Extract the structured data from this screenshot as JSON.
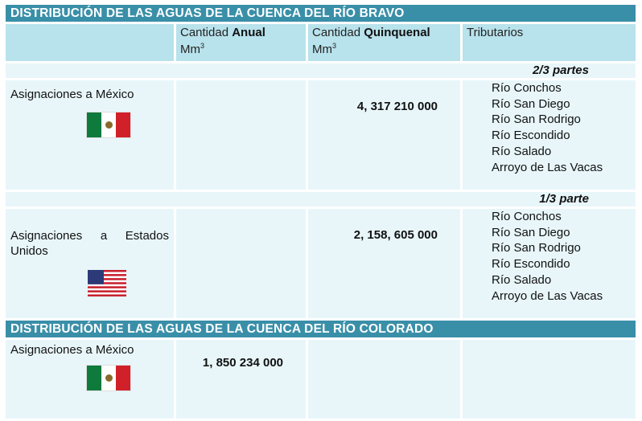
{
  "bravo": {
    "title": "DISTRIBUCIÓN DE LAS AGUAS DE LA CUENCA DEL RÍO BRAVO",
    "headers": {
      "anual_prefix": "Cantidad ",
      "anual_bold": "Anual",
      "quinquenal_prefix": "Cantidad ",
      "quinquenal_bold": "Quinquenal",
      "unit": "Mm",
      "unit_sup": "3",
      "tributarios": "Tributarios"
    },
    "mexico": {
      "share": "2/3 partes",
      "label": "Asignaciones a México",
      "flag": "mexico-flag",
      "quinquenal": "4, 317 210 000",
      "tributaries": [
        "Río Conchos",
        "Río San Diego",
        "Río San Rodrigo",
        "Río Escondido",
        "Río Salado",
        "Arroyo de Las Vacas"
      ]
    },
    "usa": {
      "share": "1/3 parte",
      "label_words": [
        "Asignaciones",
        "a",
        "Estados"
      ],
      "label_line2": "Unidos",
      "flag": "usa-flag",
      "quinquenal": "2, 158, 605 000",
      "tributaries": [
        "Río Conchos",
        "Río San Diego",
        "Río San Rodrigo",
        "Río Escondido",
        "Río Salado",
        "Arroyo de Las Vacas"
      ]
    }
  },
  "colorado": {
    "title": "DISTRIBUCIÓN DE LAS AGUAS DE LA CUENCA DEL RÍO COLORADO",
    "mexico": {
      "label": "Asignaciones a México",
      "flag": "mexico-flag",
      "anual": "1, 850 234 000"
    }
  },
  "colors": {
    "banner": "#3a8fa8",
    "header_cell": "#b8e2ec",
    "body_cell": "#e8f6fa"
  }
}
